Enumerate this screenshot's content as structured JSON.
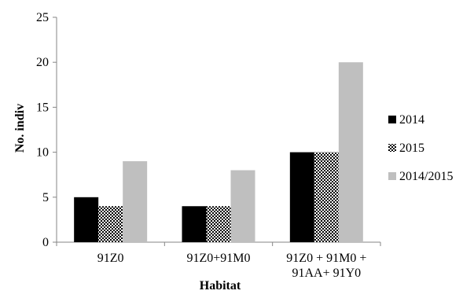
{
  "chart_data": {
    "type": "bar",
    "title": "",
    "xlabel": "Habitat",
    "ylabel": "No. indiv",
    "ylim": [
      0,
      25
    ],
    "yticks": [
      "0",
      "5",
      "10",
      "15",
      "20",
      "25"
    ],
    "grid": false,
    "legend_position": "right",
    "categories": [
      [
        "91Z0"
      ],
      [
        "91Z0+91M0"
      ],
      [
        "91Z0 + 91M0 +",
        "91AA+ 91Y0"
      ]
    ],
    "series": [
      {
        "name": "2014",
        "values": [
          5,
          4,
          10
        ],
        "color": "#000000",
        "pattern": "solid"
      },
      {
        "name": "2015",
        "values": [
          4,
          4,
          10
        ],
        "color": "#000000",
        "pattern": "checkerboard"
      },
      {
        "name": "2014/2015",
        "values": [
          9,
          8,
          20
        ],
        "color": "#bfbfbf",
        "pattern": "solid"
      }
    ]
  }
}
